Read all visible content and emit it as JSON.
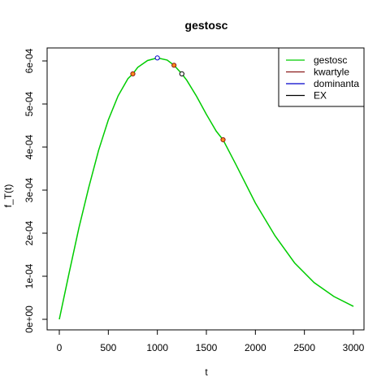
{
  "chart_data": {
    "type": "line",
    "title": "gestosc",
    "xlabel": "t",
    "ylabel": "f_T(t)",
    "xlim": [
      0,
      3000
    ],
    "ylim": [
      0,
      0.0006
    ],
    "x_ticks": [
      0,
      500,
      1000,
      1500,
      2000,
      2500,
      3000
    ],
    "x_tick_labels": [
      "0",
      "500",
      "1000",
      "1500",
      "2000",
      "2500",
      "3000"
    ],
    "y_ticks": [
      0,
      0.0001,
      0.0002,
      0.0003,
      0.0004,
      0.0005,
      0.0006
    ],
    "y_tick_labels": [
      "0e+00",
      "1e-04",
      "2e-04",
      "3e-04",
      "4e-04",
      "5e-04",
      "6e-04"
    ],
    "grid": false,
    "legend_position": "top-right",
    "series": [
      {
        "name": "gestosc",
        "color": "#00cc00",
        "x": [
          0,
          100,
          200,
          300,
          400,
          500,
          600,
          700,
          750,
          800,
          900,
          1000,
          1100,
          1170,
          1250,
          1300,
          1400,
          1500,
          1600,
          1670,
          1800,
          2000,
          2200,
          2400,
          2600,
          2800,
          3000
        ],
        "y": [
          0.0,
          0.000108,
          0.000212,
          0.000306,
          0.000392,
          0.000463,
          0.000519,
          0.000559,
          0.00057,
          0.000585,
          0.000601,
          0.000607,
          0.000602,
          0.00059,
          0.00057,
          0.000555,
          0.000518,
          0.000476,
          0.000437,
          0.000417,
          0.00036,
          0.00027,
          0.000194,
          0.000131,
          8.5e-05,
          5.3e-05,
          3e-05
        ]
      }
    ],
    "markers": [
      {
        "name": "kwartyle",
        "color": "#8b1a1a",
        "fill": "#ff8c1a",
        "points": [
          {
            "x": 750,
            "y": 0.00057
          },
          {
            "x": 1170,
            "y": 0.00059
          },
          {
            "x": 1670,
            "y": 0.000417
          }
        ]
      },
      {
        "name": "dominanta",
        "color": "#0000cc",
        "fill": "#ffffff",
        "points": [
          {
            "x": 1000,
            "y": 0.000607
          }
        ]
      },
      {
        "name": "EX",
        "color": "#000000",
        "fill": "#ffffff",
        "points": [
          {
            "x": 1250,
            "y": 0.00057
          }
        ]
      }
    ],
    "legend": [
      {
        "label": "gestosc",
        "color": "#00cc00"
      },
      {
        "label": "kwartyle",
        "color": "#8b1a1a"
      },
      {
        "label": "dominanta",
        "color": "#0000cc"
      },
      {
        "label": "EX",
        "color": "#000000"
      }
    ]
  }
}
